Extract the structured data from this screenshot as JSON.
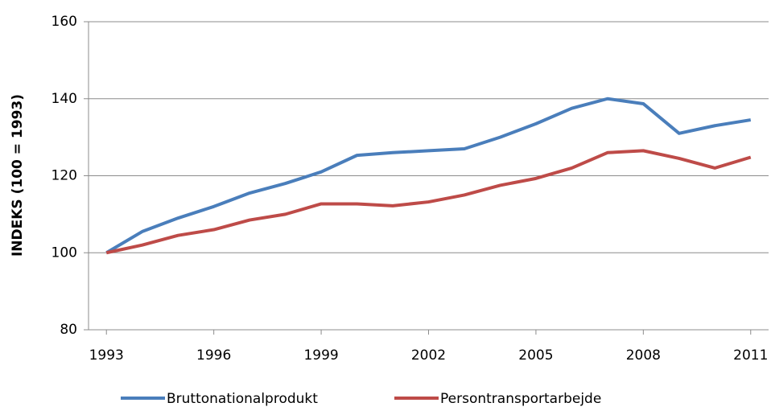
{
  "chart_data": {
    "type": "line",
    "y_label": "INDEKS (100 = 1993)",
    "x": [
      1993,
      1994,
      1995,
      1996,
      1997,
      1998,
      1999,
      2000,
      2001,
      2002,
      2003,
      2004,
      2005,
      2006,
      2007,
      2008,
      2009,
      2010,
      2011
    ],
    "series": [
      {
        "name": "Bruttonationalprodukt",
        "color": "#4a7ebb",
        "values": [
          100,
          105.5,
          109,
          112,
          115.5,
          118,
          121,
          125.3,
          126,
          126.5,
          127,
          130,
          133.5,
          137.5,
          140,
          138.7,
          131,
          133,
          134.5
        ]
      },
      {
        "name": "Persontransportarbejde",
        "color": "#be4b48",
        "values": [
          100,
          102,
          104.5,
          106,
          108.5,
          110,
          112.7,
          112.7,
          112.2,
          113.2,
          115,
          117.5,
          119.3,
          122,
          126,
          126.5,
          124.5,
          122,
          124.8
        ]
      }
    ],
    "xlim": [
      1992.5,
      2011.5
    ],
    "xticks": [
      1993,
      1996,
      1999,
      2002,
      2005,
      2008,
      2011
    ],
    "ylim": [
      80,
      160
    ],
    "yticks": [
      80,
      100,
      120,
      140,
      160
    ],
    "grid": true,
    "legend": "bottom"
  }
}
